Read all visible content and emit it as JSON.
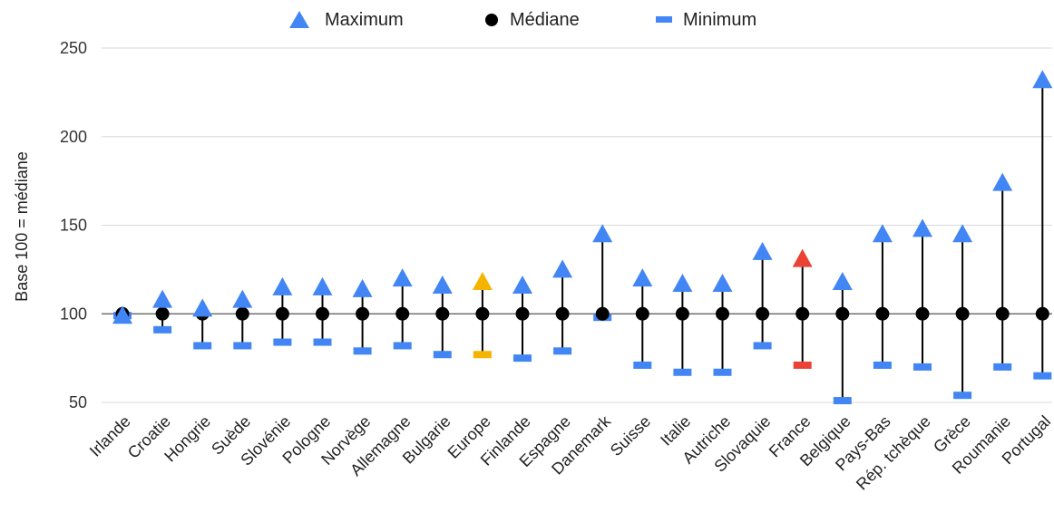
{
  "chart_data": {
    "type": "scatter",
    "ylabel": "Base 100 = médiane",
    "ylim": [
      50,
      250
    ],
    "yticks": [
      50,
      100,
      150,
      200,
      250
    ],
    "grid": true,
    "legend_placement": "top-center",
    "legend": [
      {
        "key": "max",
        "label": "Maximum",
        "marker": "triangle"
      },
      {
        "key": "median",
        "label": "Médiane",
        "marker": "circle"
      },
      {
        "key": "min",
        "label": "Minimum",
        "marker": "dash"
      }
    ],
    "colors": {
      "default": "#4285f4",
      "europe": "#f5b400",
      "france": "#ea4335",
      "median": "#000000"
    },
    "categories": [
      "Irlande",
      "Croatie",
      "Hongrie",
      "Suède",
      "Slovénie",
      "Pologne",
      "Norvège",
      "Allemagne",
      "Bulgarie",
      "Europe",
      "Finlande",
      "Espagne",
      "Danemark",
      "Suisse",
      "Italie",
      "Autriche",
      "Slovaquie",
      "France",
      "Belgique",
      "Pays-Bas",
      "Rép. tchèque",
      "Grèce",
      "Roumanie",
      "Portugal"
    ],
    "highlight": {
      "Europe": "europe",
      "France": "france"
    },
    "series": [
      {
        "name": "Maximum",
        "values": [
          99,
          108,
          103,
          108,
          115,
          115,
          114,
          120,
          116,
          118,
          116,
          125,
          145,
          120,
          117,
          117,
          135,
          131,
          118,
          145,
          148,
          145,
          174,
          232
        ]
      },
      {
        "name": "Médiane",
        "values": [
          100,
          100,
          100,
          100,
          100,
          100,
          100,
          100,
          100,
          100,
          100,
          100,
          100,
          100,
          100,
          100,
          100,
          100,
          100,
          100,
          100,
          100,
          100,
          100
        ]
      },
      {
        "name": "Minimum",
        "values": [
          99,
          91,
          82,
          82,
          84,
          84,
          79,
          82,
          77,
          77,
          75,
          79,
          98,
          71,
          67,
          67,
          82,
          71,
          51,
          71,
          70,
          54,
          70,
          65
        ]
      }
    ]
  }
}
